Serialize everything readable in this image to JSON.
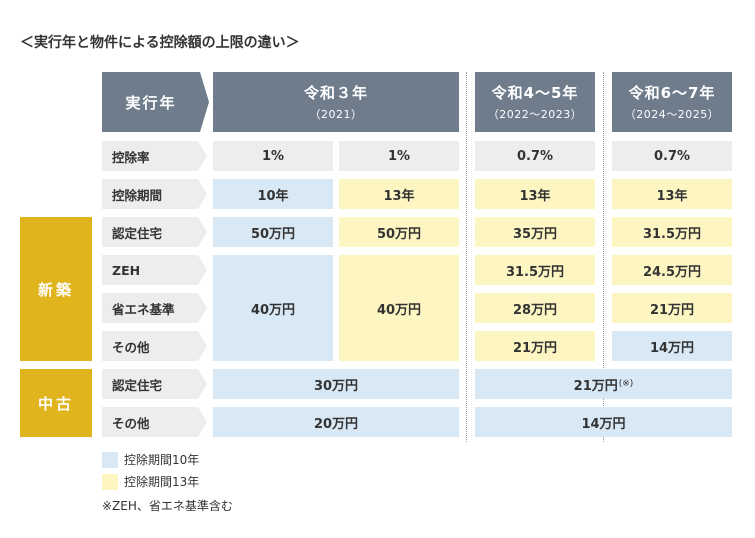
{
  "title": "＜実行年と物件による控除額の上限の違い＞",
  "header": {
    "year_label": "実行年",
    "columns": [
      {
        "title": "令和３年",
        "sub": "（2021）"
      },
      {
        "title": "令和4～5年",
        "sub": "（2022～2023）"
      },
      {
        "title": "令和6～7年",
        "sub": "（2024～2025）"
      }
    ]
  },
  "row_labels": {
    "rate": "控除率",
    "period": "控除期間",
    "certified": "認定住宅",
    "zeh": "ZEH",
    "energy": "省エネ基準",
    "other": "その他",
    "used_certified": "認定住宅",
    "used_other": "その他"
  },
  "categories": {
    "new": "新築",
    "used": "中古"
  },
  "cells": {
    "rate_r3a": "1%",
    "rate_r3b": "1%",
    "rate_r45": "0.7%",
    "rate_r67": "0.7%",
    "period_r3a": "10年",
    "period_r3b": "13年",
    "period_r45": "13年",
    "period_r67": "13年",
    "cert_r3a": "50万円",
    "cert_r3b": "50万円",
    "cert_r45": "35万円",
    "cert_r67": "31.5万円",
    "zeh_r45": "31.5万円",
    "zeh_r67": "24.5万円",
    "energy_r3a": "40万円",
    "energy_r3b": "40万円",
    "energy_r45": "28万円",
    "energy_r67": "21万円",
    "other_r45": "21万円",
    "other_r67": "14万円",
    "used_cert_r3": "30万円",
    "used_cert_r4": "21万円",
    "used_cert_note": "(※)",
    "used_other_r3": "20万円",
    "used_other_r4": "14万円"
  },
  "legend": {
    "blue_label": "控除期間10年",
    "yellow_label": "控除期間13年",
    "note": "※ZEH、省エネ基準含む"
  },
  "colors": {
    "header": "#6f7c8c",
    "category": "#e0b41c",
    "period_10": "#d9e8f5",
    "period_13": "#fdf6c3",
    "neutral": "#ededed"
  }
}
